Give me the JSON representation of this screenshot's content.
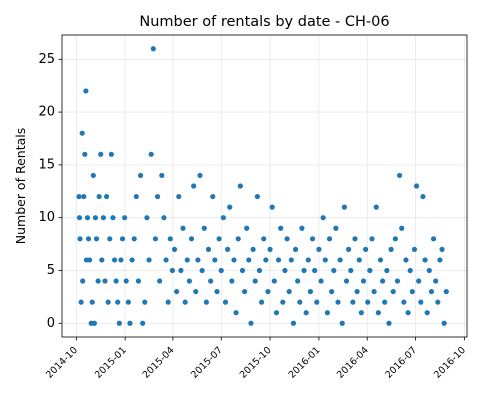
{
  "chart_data": {
    "type": "scatter",
    "title": "Number of rentals by date - CH-06",
    "xlabel": "",
    "ylabel": "Number of Rentals",
    "grid": true,
    "marker_color": "#1f77b4",
    "xlim": [
      "2014-09-04",
      "2016-10-06"
    ],
    "ylim": [
      -1.3,
      27.3
    ],
    "x_ticks": [
      "2014-10",
      "2015-01",
      "2015-04",
      "2015-07",
      "2015-10",
      "2016-01",
      "2016-04",
      "2016-07",
      "2016-10"
    ],
    "x_tick_dates": [
      "2014-10-01",
      "2015-01-01",
      "2015-04-01",
      "2015-07-01",
      "2015-10-01",
      "2016-01-01",
      "2016-04-01",
      "2016-07-01",
      "2016-10-01"
    ],
    "y_ticks": [
      "0",
      "5",
      "10",
      "15",
      "20",
      "25"
    ],
    "y_tick_values": [
      0,
      5,
      10,
      15,
      20,
      25
    ],
    "points": [
      {
        "x": "2014-10-06",
        "y": 12
      },
      {
        "x": "2014-10-07",
        "y": 10
      },
      {
        "x": "2014-10-08",
        "y": 8
      },
      {
        "x": "2014-10-10",
        "y": 2
      },
      {
        "x": "2014-10-12",
        "y": 18
      },
      {
        "x": "2014-10-13",
        "y": 4
      },
      {
        "x": "2014-10-15",
        "y": 12
      },
      {
        "x": "2014-10-17",
        "y": 16
      },
      {
        "x": "2014-10-19",
        "y": 22
      },
      {
        "x": "2014-10-20",
        "y": 6
      },
      {
        "x": "2014-10-22",
        "y": 10
      },
      {
        "x": "2014-10-24",
        "y": 8
      },
      {
        "x": "2014-10-26",
        "y": 6
      },
      {
        "x": "2014-10-29",
        "y": 0
      },
      {
        "x": "2014-10-31",
        "y": 2
      },
      {
        "x": "2014-11-02",
        "y": 14
      },
      {
        "x": "2014-11-04",
        "y": 0
      },
      {
        "x": "2014-11-06",
        "y": 10
      },
      {
        "x": "2014-11-08",
        "y": 8
      },
      {
        "x": "2014-11-11",
        "y": 4
      },
      {
        "x": "2014-11-13",
        "y": 12
      },
      {
        "x": "2014-11-16",
        "y": 16
      },
      {
        "x": "2014-11-18",
        "y": 6
      },
      {
        "x": "2014-11-21",
        "y": 10
      },
      {
        "x": "2014-11-24",
        "y": 4
      },
      {
        "x": "2014-11-27",
        "y": 12
      },
      {
        "x": "2014-11-30",
        "y": 2
      },
      {
        "x": "2014-12-03",
        "y": 8
      },
      {
        "x": "2014-12-06",
        "y": 16
      },
      {
        "x": "2014-12-09",
        "y": 10
      },
      {
        "x": "2014-12-12",
        "y": 6
      },
      {
        "x": "2014-12-15",
        "y": 4
      },
      {
        "x": "2014-12-18",
        "y": 2
      },
      {
        "x": "2014-12-21",
        "y": 0
      },
      {
        "x": "2014-12-24",
        "y": 6
      },
      {
        "x": "2014-12-27",
        "y": 8
      },
      {
        "x": "2014-12-31",
        "y": 10
      },
      {
        "x": "2015-01-03",
        "y": 4
      },
      {
        "x": "2015-01-07",
        "y": 2
      },
      {
        "x": "2015-01-10",
        "y": 0
      },
      {
        "x": "2015-01-14",
        "y": 6
      },
      {
        "x": "2015-01-18",
        "y": 8
      },
      {
        "x": "2015-01-22",
        "y": 12
      },
      {
        "x": "2015-01-26",
        "y": 4
      },
      {
        "x": "2015-01-30",
        "y": 14
      },
      {
        "x": "2015-02-03",
        "y": 0
      },
      {
        "x": "2015-02-07",
        "y": 2
      },
      {
        "x": "2015-02-11",
        "y": 10
      },
      {
        "x": "2015-02-15",
        "y": 6
      },
      {
        "x": "2015-02-19",
        "y": 16
      },
      {
        "x": "2015-02-23",
        "y": 26
      },
      {
        "x": "2015-02-27",
        "y": 8
      },
      {
        "x": "2015-03-03",
        "y": 12
      },
      {
        "x": "2015-03-07",
        "y": 4
      },
      {
        "x": "2015-03-11",
        "y": 14
      },
      {
        "x": "2015-03-15",
        "y": 10
      },
      {
        "x": "2015-03-19",
        "y": 6
      },
      {
        "x": "2015-03-23",
        "y": 2
      },
      {
        "x": "2015-03-27",
        "y": 8
      },
      {
        "x": "2015-03-31",
        "y": 5
      },
      {
        "x": "2015-04-04",
        "y": 7
      },
      {
        "x": "2015-04-08",
        "y": 3
      },
      {
        "x": "2015-04-12",
        "y": 12
      },
      {
        "x": "2015-04-16",
        "y": 5
      },
      {
        "x": "2015-04-20",
        "y": 9
      },
      {
        "x": "2015-04-24",
        "y": 2
      },
      {
        "x": "2015-04-28",
        "y": 6
      },
      {
        "x": "2015-05-02",
        "y": 4
      },
      {
        "x": "2015-05-06",
        "y": 8
      },
      {
        "x": "2015-05-10",
        "y": 13
      },
      {
        "x": "2015-05-14",
        "y": 3
      },
      {
        "x": "2015-05-18",
        "y": 6
      },
      {
        "x": "2015-05-22",
        "y": 14
      },
      {
        "x": "2015-05-26",
        "y": 5
      },
      {
        "x": "2015-05-30",
        "y": 9
      },
      {
        "x": "2015-06-03",
        "y": 2
      },
      {
        "x": "2015-06-07",
        "y": 7
      },
      {
        "x": "2015-06-11",
        "y": 4
      },
      {
        "x": "2015-06-15",
        "y": 12
      },
      {
        "x": "2015-06-19",
        "y": 6
      },
      {
        "x": "2015-06-23",
        "y": 3
      },
      {
        "x": "2015-06-27",
        "y": 8
      },
      {
        "x": "2015-07-01",
        "y": 5
      },
      {
        "x": "2015-07-05",
        "y": 10
      },
      {
        "x": "2015-07-09",
        "y": 2
      },
      {
        "x": "2015-07-13",
        "y": 7
      },
      {
        "x": "2015-07-17",
        "y": 11
      },
      {
        "x": "2015-07-21",
        "y": 4
      },
      {
        "x": "2015-07-25",
        "y": 6
      },
      {
        "x": "2015-07-29",
        "y": 1
      },
      {
        "x": "2015-08-02",
        "y": 8
      },
      {
        "x": "2015-08-06",
        "y": 13
      },
      {
        "x": "2015-08-10",
        "y": 5
      },
      {
        "x": "2015-08-14",
        "y": 3
      },
      {
        "x": "2015-08-18",
        "y": 9
      },
      {
        "x": "2015-08-22",
        "y": 6
      },
      {
        "x": "2015-08-26",
        "y": 0
      },
      {
        "x": "2015-08-30",
        "y": 7
      },
      {
        "x": "2015-09-03",
        "y": 4
      },
      {
        "x": "2015-09-07",
        "y": 12
      },
      {
        "x": "2015-09-11",
        "y": 5
      },
      {
        "x": "2015-09-15",
        "y": 2
      },
      {
        "x": "2015-09-19",
        "y": 8
      },
      {
        "x": "2015-09-23",
        "y": 6
      },
      {
        "x": "2015-09-27",
        "y": 3
      },
      {
        "x": "2015-10-01",
        "y": 7
      },
      {
        "x": "2015-10-05",
        "y": 11
      },
      {
        "x": "2015-10-09",
        "y": 4
      },
      {
        "x": "2015-10-13",
        "y": 1
      },
      {
        "x": "2015-10-17",
        "y": 6
      },
      {
        "x": "2015-10-21",
        "y": 9
      },
      {
        "x": "2015-10-25",
        "y": 2
      },
      {
        "x": "2015-10-29",
        "y": 5
      },
      {
        "x": "2015-11-02",
        "y": 8
      },
      {
        "x": "2015-11-06",
        "y": 3
      },
      {
        "x": "2015-11-10",
        "y": 6
      },
      {
        "x": "2015-11-14",
        "y": 0
      },
      {
        "x": "2015-11-18",
        "y": 7
      },
      {
        "x": "2015-11-22",
        "y": 4
      },
      {
        "x": "2015-11-26",
        "y": 2
      },
      {
        "x": "2015-11-30",
        "y": 9
      },
      {
        "x": "2015-12-04",
        "y": 5
      },
      {
        "x": "2015-12-08",
        "y": 1
      },
      {
        "x": "2015-12-12",
        "y": 6
      },
      {
        "x": "2015-12-16",
        "y": 3
      },
      {
        "x": "2015-12-20",
        "y": 8
      },
      {
        "x": "2015-12-24",
        "y": 5
      },
      {
        "x": "2015-12-28",
        "y": 2
      },
      {
        "x": "2016-01-01",
        "y": 7
      },
      {
        "x": "2016-01-05",
        "y": 4
      },
      {
        "x": "2016-01-09",
        "y": 10
      },
      {
        "x": "2016-01-13",
        "y": 6
      },
      {
        "x": "2016-01-17",
        "y": 1
      },
      {
        "x": "2016-01-21",
        "y": 8
      },
      {
        "x": "2016-01-25",
        "y": 3
      },
      {
        "x": "2016-01-29",
        "y": 5
      },
      {
        "x": "2016-02-02",
        "y": 9
      },
      {
        "x": "2016-02-06",
        "y": 2
      },
      {
        "x": "2016-02-10",
        "y": 6
      },
      {
        "x": "2016-02-14",
        "y": 0
      },
      {
        "x": "2016-02-18",
        "y": 11
      },
      {
        "x": "2016-02-22",
        "y": 4
      },
      {
        "x": "2016-02-26",
        "y": 7
      },
      {
        "x": "2016-03-01",
        "y": 5
      },
      {
        "x": "2016-03-05",
        "y": 2
      },
      {
        "x": "2016-03-09",
        "y": 8
      },
      {
        "x": "2016-03-13",
        "y": 3
      },
      {
        "x": "2016-03-17",
        "y": 6
      },
      {
        "x": "2016-03-21",
        "y": 1
      },
      {
        "x": "2016-03-25",
        "y": 4
      },
      {
        "x": "2016-03-29",
        "y": 7
      },
      {
        "x": "2016-04-02",
        "y": 2
      },
      {
        "x": "2016-04-06",
        "y": 5
      },
      {
        "x": "2016-04-10",
        "y": 8
      },
      {
        "x": "2016-04-14",
        "y": 3
      },
      {
        "x": "2016-04-18",
        "y": 11
      },
      {
        "x": "2016-04-22",
        "y": 1
      },
      {
        "x": "2016-04-26",
        "y": 6
      },
      {
        "x": "2016-04-30",
        "y": 4
      },
      {
        "x": "2016-05-04",
        "y": 2
      },
      {
        "x": "2016-05-08",
        "y": 5
      },
      {
        "x": "2016-05-12",
        "y": 0
      },
      {
        "x": "2016-05-16",
        "y": 7
      },
      {
        "x": "2016-05-20",
        "y": 3
      },
      {
        "x": "2016-05-24",
        "y": 8
      },
      {
        "x": "2016-05-28",
        "y": 4
      },
      {
        "x": "2016-06-01",
        "y": 14
      },
      {
        "x": "2016-06-05",
        "y": 9
      },
      {
        "x": "2016-06-09",
        "y": 2
      },
      {
        "x": "2016-06-13",
        "y": 6
      },
      {
        "x": "2016-06-17",
        "y": 1
      },
      {
        "x": "2016-06-21",
        "y": 5
      },
      {
        "x": "2016-06-25",
        "y": 3
      },
      {
        "x": "2016-06-29",
        "y": 7
      },
      {
        "x": "2016-07-03",
        "y": 13
      },
      {
        "x": "2016-07-07",
        "y": 4
      },
      {
        "x": "2016-07-11",
        "y": 2
      },
      {
        "x": "2016-07-15",
        "y": 12
      },
      {
        "x": "2016-07-19",
        "y": 6
      },
      {
        "x": "2016-07-23",
        "y": 1
      },
      {
        "x": "2016-07-27",
        "y": 5
      },
      {
        "x": "2016-07-31",
        "y": 3
      },
      {
        "x": "2016-08-04",
        "y": 8
      },
      {
        "x": "2016-08-08",
        "y": 4
      },
      {
        "x": "2016-08-12",
        "y": 2
      },
      {
        "x": "2016-08-16",
        "y": 6
      },
      {
        "x": "2016-08-20",
        "y": 7
      },
      {
        "x": "2016-08-24",
        "y": 0
      },
      {
        "x": "2016-08-28",
        "y": 3
      }
    ]
  }
}
